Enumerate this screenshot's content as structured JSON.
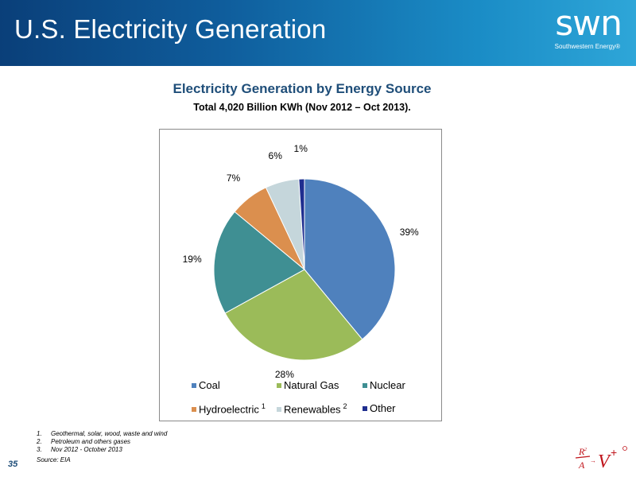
{
  "header": {
    "title": "U.S. Electricity Generation",
    "logo_text": "swn",
    "logo_subtext": "Southwestern Energy®"
  },
  "chart_data": {
    "type": "pie",
    "title": "Electricity Generation by Energy Source",
    "subtitle": "Total 4,020 Billion KWh (Nov 2012 – Oct 2013).",
    "categories": [
      "Coal",
      "Natural Gas",
      "Nuclear",
      "Hydroelectric",
      "Renewables",
      "Other"
    ],
    "values": [
      39,
      28,
      19,
      7,
      6,
      1
    ],
    "value_labels": [
      "39%",
      "28%",
      "19%",
      "7%",
      "6%",
      "1%"
    ],
    "colors": [
      "#4f81bd",
      "#9bbb59",
      "#3f8f93",
      "#db8f4e",
      "#c5d6db",
      "#1f2e8f"
    ],
    "legend_superscripts": {
      "Hydroelectric": "1",
      "Renewables": "2"
    },
    "legend_position": "bottom"
  },
  "footnotes": [
    {
      "num": "1.",
      "text": "Geothermal, solar, wood, waste and wind"
    },
    {
      "num": "2.",
      "text": "Petroleum and others gases"
    },
    {
      "num": "3.",
      "text": "Nov 2012 - October 2013"
    }
  ],
  "source": "Source: EIA",
  "page_number": "35"
}
